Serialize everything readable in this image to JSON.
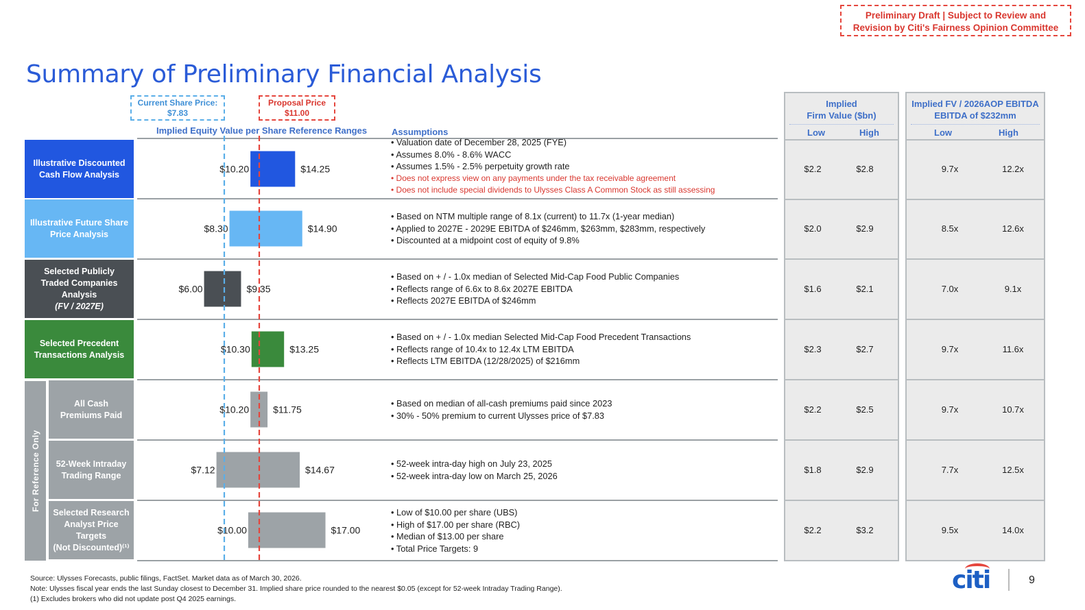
{
  "draft_notice": [
    "Preliminary Draft | Subject to Review and",
    "Revision by Citi's Fairness Opinion Committee"
  ],
  "title": "Summary of Preliminary Financial Analysis",
  "current_price_callout": [
    "Current Share Price:",
    "$7.83"
  ],
  "proposal_price_callout": [
    "Proposal Price",
    "$11.00"
  ],
  "col_header_ranges": "Implied Equity Value  per Share Reference Ranges",
  "col_header_assumptions": "Assumptions",
  "firm_value_header": [
    "Implied",
    "Firm Value ($bn)"
  ],
  "ev_ebitda_header": [
    "Implied FV / 2026AOP EBITDA",
    "EBITDA of $232mm"
  ],
  "low_label": "Low",
  "high_label": "High",
  "for_reference_label": "For Reference Only",
  "colors": {
    "dcf": "#2157e0",
    "future": "#67b7f4",
    "comps": "#4a4f54",
    "precedent": "#3a8a3c",
    "reference": "#9da3a7",
    "current_line": "#5aaee8",
    "proposal_line": "#e5453c"
  },
  "rows": [
    {
      "label_lines": [
        "Illustrative Discounted",
        "Cash Flow Analysis"
      ],
      "color_key": "dcf",
      "low_text": "$10.20",
      "high_text": "$14.25",
      "assumptions": [
        {
          "text": "• Valuation date of December 28, 2025 (FYE)",
          "red": false
        },
        {
          "text": "• Assumes 8.0% - 8.6% WACC",
          "red": false
        },
        {
          "text": "• Assumes 1.5% - 2.5% perpetuity growth rate",
          "red": false
        },
        {
          "text": "• Does not express view on any payments under the tax receivable agreement",
          "red": true
        },
        {
          "text": "• Does not include special dividends to Ulysses Class A Common Stock as still assessing",
          "red": true
        }
      ],
      "fv_low": "$2.2",
      "fv_high": "$2.8",
      "mult_low": "9.7x",
      "mult_high": "12.2x"
    },
    {
      "label_lines": [
        "Illustrative Future Share",
        "Price Analysis"
      ],
      "color_key": "future",
      "low_text": "$8.30",
      "high_text": "$14.90",
      "assumptions": [
        {
          "text": "• Based on NTM multiple range of 8.1x (current) to 11.7x (1-year median)",
          "red": false
        },
        {
          "text": "• Applied to 2027E - 2029E EBITDA of $246mm, $263mm, $283mm, respectively",
          "red": false
        },
        {
          "text": "• Discounted at a midpoint cost of equity of 9.8%",
          "red": false
        }
      ],
      "fv_low": "$2.0",
      "fv_high": "$2.9",
      "mult_low": "8.5x",
      "mult_high": "12.6x"
    },
    {
      "label_lines": [
        "Selected Publicly",
        "Traded Companies",
        "Analysis",
        "(FV / 2027E)"
      ],
      "color_key": "comps",
      "low_text": "$6.00",
      "high_text": "$9.35",
      "assumptions": [
        {
          "text": "• Based on + / - 1.0x median of Selected Mid-Cap Food Public Companies",
          "red": false
        },
        {
          "text": "• Reflects range of  6.6x to  8.6x 2027E EBITDA",
          "red": false
        },
        {
          "text": "• Reflects 2027E EBITDA of $246mm",
          "red": false
        }
      ],
      "fv_low": "$1.6",
      "fv_high": "$2.1",
      "mult_low": "7.0x",
      "mult_high": "9.1x"
    },
    {
      "label_lines": [
        "Selected Precedent",
        "Transactions Analysis"
      ],
      "color_key": "precedent",
      "low_text": "$10.30",
      "high_text": "$13.25",
      "assumptions": [
        {
          "text": "• Based on + / - 1.0x median Selected Mid-Cap Food Precedent Transactions",
          "red": false
        },
        {
          "text": "• Reflects range of  10.4x to  12.4x LTM EBITDA",
          "red": false
        },
        {
          "text": "• Reflects LTM EBITDA (12/28/2025) of $216mm",
          "red": false
        }
      ],
      "fv_low": "$2.3",
      "fv_high": "$2.7",
      "mult_low": "9.7x",
      "mult_high": "11.6x"
    },
    {
      "label_lines": [
        "All Cash",
        "Premiums Paid"
      ],
      "color_key": "reference",
      "low_text": "$10.20",
      "high_text": "$11.75",
      "assumptions": [
        {
          "text": "• Based on median of all-cash premiums paid since 2023",
          "red": false
        },
        {
          "text": "• 30% - 50% premium to current Ulysses price of $7.83",
          "red": false
        }
      ],
      "fv_low": "$2.2",
      "fv_high": "$2.5",
      "mult_low": "9.7x",
      "mult_high": "10.7x"
    },
    {
      "label_lines": [
        "52-Week Intraday",
        "Trading Range"
      ],
      "color_key": "reference",
      "low_text": "$7.12",
      "high_text": "$14.67",
      "assumptions": [
        {
          "text": "• 52-week intra-day high on July 23, 2025",
          "red": false
        },
        {
          "text": "• 52-week intra-day low on March 25, 2026",
          "red": false
        }
      ],
      "fv_low": "$1.8",
      "fv_high": "$2.9",
      "mult_low": "7.7x",
      "mult_high": "12.5x"
    },
    {
      "label_lines": [
        "Selected Research",
        "Analyst Price",
        "Targets",
        "(Not Discounted)⁽¹⁾"
      ],
      "color_key": "reference",
      "low_text": "$10.00",
      "high_text": "$17.00",
      "assumptions": [
        {
          "text": "• Low of $10.00 per share (UBS)",
          "red": false
        },
        {
          "text": "• High of $17.00 per share (RBC)",
          "red": false
        },
        {
          "text": "• Median of $13.00 per share",
          "red": false
        },
        {
          "text": "• Total Price Targets: 9",
          "red": false
        }
      ],
      "fv_low": "$2.2",
      "fv_high": "$3.2",
      "mult_low": "9.5x",
      "mult_high": "14.0x"
    }
  ],
  "chart_data": {
    "type": "bar",
    "categories": [
      "Illustrative Discounted Cash Flow Analysis",
      "Illustrative Future Share Price Analysis",
      "Selected Publicly Traded Companies Analysis (FV / 2027E)",
      "Selected Precedent Transactions Analysis",
      "All Cash Premiums Paid",
      "52-Week Intraday Trading Range",
      "Selected Research Analyst Price Targets (Not Discounted)"
    ],
    "series": [
      {
        "name": "Low",
        "values": [
          10.2,
          8.3,
          6.0,
          10.3,
          10.2,
          7.12,
          10.0
        ]
      },
      {
        "name": "High",
        "values": [
          14.25,
          14.9,
          9.35,
          13.25,
          11.75,
          14.67,
          17.0
        ]
      }
    ],
    "reference_lines": [
      {
        "label": "Current Share Price: $7.83",
        "value": 7.83
      },
      {
        "label": "Proposal Price $11.00",
        "value": 11.0
      }
    ],
    "orientation": "horizontal floating range",
    "xlabel": "Implied Equity Value  per Share Reference Ranges"
  },
  "footnotes": [
    "Source: Ulysses Forecasts, public filings, FactSet. Market data as of March 30, 2026.",
    "Note: Ulysses fiscal year ends the last Sunday closest to December 31. Implied  share price rounded to the nearest $0.05 (except for 52-week Intraday Trading Range).",
    "(1) Excludes brokers who did not update post Q4 2025 earnings."
  ],
  "brand": "citi",
  "page_number": "9"
}
